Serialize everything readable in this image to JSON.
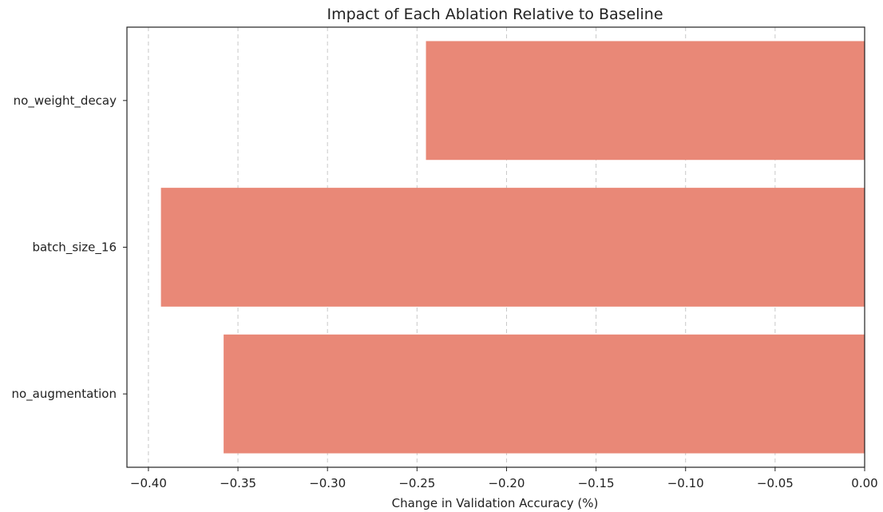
{
  "chart_data": {
    "type": "bar",
    "orientation": "horizontal",
    "title": "Impact of Each Ablation Relative to Baseline",
    "xlabel": "Change in Validation Accuracy (%)",
    "ylabel": "",
    "categories": [
      "no_weight_decay",
      "batch_size_16",
      "no_augmentation"
    ],
    "values": [
      -0.245,
      -0.393,
      -0.358
    ],
    "xlim": [
      -0.412,
      0.0
    ],
    "xticks": [
      -0.4,
      -0.35,
      -0.3,
      -0.25,
      -0.2,
      -0.15,
      -0.1,
      -0.05,
      0.0
    ],
    "xtick_labels": [
      "−0.40",
      "−0.35",
      "−0.30",
      "−0.25",
      "−0.20",
      "−0.15",
      "−0.10",
      "−0.05",
      "0.00"
    ],
    "grid": "x-dashed",
    "bar_color": "#e98877"
  }
}
